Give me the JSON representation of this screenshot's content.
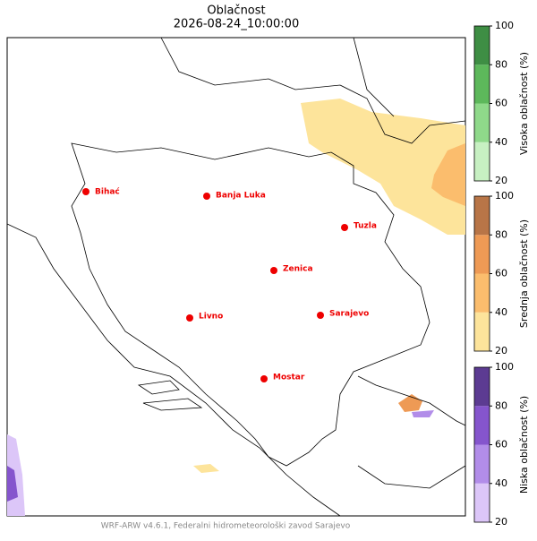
{
  "header": {
    "title": "Oblačnost",
    "subtitle": "2026-08-24_10:00:00"
  },
  "cities": [
    {
      "name": "Bihać"
    },
    {
      "name": "Banja Luka"
    },
    {
      "name": "Tuzla"
    },
    {
      "name": "Zenica"
    },
    {
      "name": "Livno"
    },
    {
      "name": "Sarajevo"
    },
    {
      "name": "Mostar"
    }
  ],
  "colorbars": [
    {
      "label": "Visoka oblačnost (%)",
      "lim": [
        20,
        100
      ],
      "ticks": [
        20,
        40,
        60,
        80,
        100
      ],
      "colors": [
        "#c7f0c2",
        "#8fd98a",
        "#5db85b",
        "#3e8e44"
      ]
    },
    {
      "label": "Srednja oblačnost (%)",
      "lim": [
        20,
        100
      ],
      "ticks": [
        20,
        40,
        60,
        80,
        100
      ],
      "colors": [
        "#fde49b",
        "#fbbd6d",
        "#ee9a55",
        "#b87547"
      ]
    },
    {
      "label": "Niska oblačnost (%)",
      "lim": [
        20,
        100
      ],
      "ticks": [
        20,
        40,
        60,
        80,
        100
      ],
      "colors": [
        "#dcc6f8",
        "#b28de9",
        "#8555cd",
        "#5c3b92"
      ]
    }
  ],
  "footer": "WRF-ARW v4.6.1, Federalni hidrometeorološki zavod Sarajevo"
}
